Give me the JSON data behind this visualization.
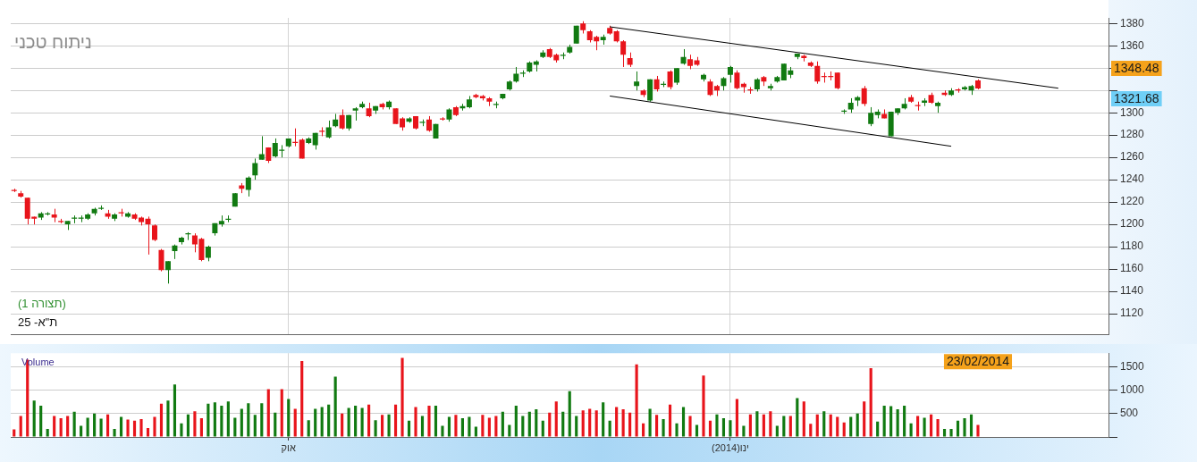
{
  "chart_data": [
    {
      "type": "candlestick",
      "title": "ניתוח טכני",
      "categories": [
        null,
        null,
        null,
        null,
        null,
        null,
        null,
        null,
        null,
        null,
        null,
        null,
        null,
        null,
        null,
        null,
        null,
        null,
        null,
        null,
        null,
        null,
        null,
        null,
        null,
        null,
        null,
        null,
        null,
        null,
        null,
        null,
        null,
        null,
        null,
        null,
        null,
        null,
        null,
        null,
        null,
        null,
        null,
        null,
        null,
        null,
        null,
        null,
        null,
        null,
        null,
        null,
        null,
        null,
        null,
        null,
        null,
        null,
        null,
        null,
        null,
        null,
        null,
        null,
        null,
        null,
        null,
        null,
        null,
        null,
        null,
        null,
        null,
        null,
        null,
        null,
        null,
        null,
        null,
        null,
        null,
        null,
        null,
        null,
        null,
        null,
        null,
        null,
        null,
        null,
        null,
        null,
        null,
        null,
        null,
        null,
        null,
        null,
        null,
        null,
        null,
        null,
        null,
        null,
        null,
        null,
        null,
        null,
        null,
        null,
        null,
        null,
        null,
        null,
        null,
        null,
        null,
        null,
        null,
        null,
        null,
        null,
        null,
        null,
        null,
        null,
        null,
        null,
        null,
        null,
        null,
        null,
        null,
        null,
        null,
        null,
        null,
        null,
        null,
        null,
        null,
        null,
        null,
        null,
        null,
        null,
        null,
        null,
        null,
        null,
        null,
        null,
        null,
        null,
        null,
        null,
        null,
        null,
        null,
        null,
        null,
        null,
        null,
        null
      ],
      "ohlc": [
        [
          1231,
          1232,
          1229,
          1230
        ],
        [
          1228,
          1230,
          1224,
          1225
        ],
        [
          1224,
          1224,
          1200,
          1205
        ],
        [
          1207,
          1207,
          1200,
          1205
        ],
        [
          1206,
          1211,
          1204,
          1210
        ],
        [
          1209,
          1211,
          1208,
          1210
        ],
        [
          1209,
          1214,
          1202,
          1206
        ],
        [
          1203,
          1205,
          1201,
          1202
        ],
        [
          1200,
          1203,
          1195,
          1203
        ],
        [
          1205,
          1208,
          1201,
          1206
        ],
        [
          1205,
          1208,
          1202,
          1206
        ],
        [
          1205,
          1210,
          1204,
          1209
        ],
        [
          1210,
          1215,
          1208,
          1214
        ],
        [
          1214,
          1217,
          1213,
          1215
        ],
        [
          1210,
          1213,
          1205,
          1207
        ],
        [
          1205,
          1210,
          1203,
          1209
        ],
        [
          1211,
          1214,
          1207,
          1210
        ],
        [
          1207,
          1211,
          1206,
          1210
        ],
        [
          1209,
          1210,
          1204,
          1205
        ],
        [
          1206,
          1207,
          1199,
          1202
        ],
        [
          1205,
          1207,
          1173,
          1200
        ],
        [
          1199,
          1200,
          1185,
          1186
        ],
        [
          1177,
          1178,
          1158,
          1159
        ],
        [
          1159,
          1167,
          1147,
          1167
        ],
        [
          1176,
          1182,
          1169,
          1181
        ],
        [
          1184,
          1189,
          1182,
          1188
        ],
        [
          1191,
          1193,
          1186,
          1192
        ],
        [
          1190,
          1192,
          1175,
          1182
        ],
        [
          1187,
          1188,
          1167,
          1168
        ],
        [
          1170,
          1181,
          1167,
          1180
        ],
        [
          1192,
          1201,
          1190,
          1201
        ],
        [
          1200,
          1208,
          1198,
          1203
        ],
        [
          1204,
          1208,
          1202,
          1205
        ],
        [
          1216,
          1228,
          1216,
          1228
        ],
        [
          1235,
          1237,
          1228,
          1232
        ],
        [
          1231,
          1243,
          1225,
          1242
        ],
        [
          1244,
          1259,
          1240,
          1255
        ],
        [
          1258,
          1279,
          1258,
          1263
        ],
        [
          1269,
          1269,
          1255,
          1257
        ],
        [
          1261,
          1277,
          1260,
          1273
        ],
        [
          1266,
          1271,
          1260,
          1267
        ],
        [
          1270,
          1277,
          1269,
          1277
        ],
        [
          1274,
          1286,
          1270,
          1273
        ],
        [
          1276,
          1277,
          1259,
          1259
        ],
        [
          1273,
          1278,
          1272,
          1277
        ],
        [
          1271,
          1282,
          1267,
          1282
        ],
        [
          1284,
          1287,
          1279,
          1283
        ],
        [
          1278,
          1293,
          1277,
          1287
        ],
        [
          1288,
          1299,
          1287,
          1294
        ],
        [
          1298,
          1303,
          1285,
          1286
        ],
        [
          1286,
          1298,
          1284,
          1298
        ],
        [
          1302,
          1305,
          1293,
          1304
        ],
        [
          1305,
          1310,
          1304,
          1308
        ],
        [
          1304,
          1309,
          1296,
          1297
        ],
        [
          1302,
          1306,
          1299,
          1306
        ],
        [
          1308,
          1309,
          1303,
          1305
        ],
        [
          1305,
          1311,
          1303,
          1310
        ],
        [
          1304,
          1304,
          1290,
          1290
        ],
        [
          1295,
          1296,
          1284,
          1287
        ],
        [
          1292,
          1296,
          1291,
          1295
        ],
        [
          1297,
          1297,
          1285,
          1286
        ],
        [
          1291,
          1294,
          1288,
          1292
        ],
        [
          1294,
          1297,
          1283,
          1284
        ],
        [
          1277,
          1290,
          1277,
          1290
        ],
        [
          1295,
          1296,
          1293,
          1294
        ],
        [
          1294,
          1304,
          1292,
          1303
        ],
        [
          1305,
          1306,
          1297,
          1298
        ],
        [
          1304,
          1308,
          1302,
          1306
        ],
        [
          1305,
          1315,
          1304,
          1312
        ],
        [
          1316,
          1317,
          1313,
          1314
        ],
        [
          1315,
          1316,
          1311,
          1313
        ],
        [
          1313,
          1314,
          1306,
          1310
        ],
        [
          1307,
          1310,
          1304,
          1308
        ],
        [
          1313,
          1317,
          1312,
          1317
        ],
        [
          1321,
          1329,
          1320,
          1328
        ],
        [
          1328,
          1341,
          1327,
          1335
        ],
        [
          1335,
          1338,
          1332,
          1336
        ],
        [
          1337,
          1346,
          1336,
          1345
        ],
        [
          1343,
          1347,
          1337,
          1346
        ],
        [
          1350,
          1356,
          1349,
          1354
        ],
        [
          1357,
          1358,
          1349,
          1350
        ],
        [
          1352,
          1353,
          1345,
          1347
        ],
        [
          1351,
          1354,
          1348,
          1352
        ],
        [
          1354,
          1361,
          1353,
          1359
        ],
        [
          1362,
          1378,
          1362,
          1378
        ],
        [
          1380,
          1382,
          1371,
          1374
        ],
        [
          1373,
          1374,
          1363,
          1365
        ],
        [
          1368,
          1369,
          1356,
          1364
        ],
        [
          1365,
          1370,
          1361,
          1368
        ],
        [
          1376,
          1378,
          1370,
          1371
        ],
        [
          1373,
          1374,
          1363,
          1364
        ],
        [
          1364,
          1365,
          1341,
          1352
        ],
        [
          1349,
          1354,
          1341,
          1343
        ],
        [
          1324,
          1337,
          1320,
          1328
        ],
        [
          1320,
          1321,
          1314,
          1316
        ],
        [
          1311,
          1330,
          1310,
          1330
        ],
        [
          1330,
          1333,
          1319,
          1321
        ],
        [
          1325,
          1328,
          1323,
          1326
        ],
        [
          1337,
          1338,
          1321,
          1323
        ],
        [
          1327,
          1340,
          1325,
          1340
        ],
        [
          1344,
          1357,
          1343,
          1350
        ],
        [
          1348,
          1352,
          1339,
          1342
        ],
        [
          1347,
          1350,
          1342,
          1343
        ],
        [
          1330,
          1335,
          1328,
          1334
        ],
        [
          1328,
          1330,
          1315,
          1316
        ],
        [
          1324,
          1325,
          1315,
          1320
        ],
        [
          1324,
          1332,
          1320,
          1331
        ],
        [
          1334,
          1342,
          1327,
          1341
        ],
        [
          1336,
          1338,
          1321,
          1322
        ],
        [
          1326,
          1327,
          1318,
          1323
        ],
        [
          1321,
          1323,
          1317,
          1320
        ],
        [
          1321,
          1331,
          1319,
          1330
        ],
        [
          1332,
          1333,
          1324,
          1328
        ],
        [
          1322,
          1326,
          1320,
          1324
        ],
        [
          1328,
          1333,
          1327,
          1332
        ],
        [
          1329,
          1344,
          1329,
          1344
        ],
        [
          1334,
          1341,
          1331,
          1338
        ],
        [
          1350,
          1353,
          1348,
          1353
        ],
        [
          1351,
          1352,
          1346,
          1349
        ],
        [
          1345,
          1346,
          1341,
          1342
        ],
        [
          1342,
          1346,
          1326,
          1328
        ],
        [
          1333,
          1336,
          1327,
          1332
        ],
        [
          1333,
          1337,
          1329,
          1332
        ],
        [
          1336,
          1336,
          1321,
          1322
        ],
        [
          1301,
          1303,
          1299,
          1302
        ],
        [
          1303,
          1313,
          1300,
          1309
        ],
        [
          1311,
          1315,
          1306,
          1314
        ],
        [
          1322,
          1324,
          1306,
          1308
        ],
        [
          1290,
          1305,
          1288,
          1300
        ],
        [
          1298,
          1303,
          1295,
          1301
        ],
        [
          1299,
          1303,
          1295,
          1295
        ],
        [
          1279,
          1301,
          1279,
          1301
        ],
        [
          1300,
          1304,
          1298,
          1304
        ],
        [
          1304,
          1313,
          1303,
          1308
        ],
        [
          1314,
          1316,
          1309,
          1310
        ],
        [
          1307,
          1310,
          1302,
          1306
        ],
        [
          1309,
          1313,
          1306,
          1311
        ],
        [
          1316,
          1318,
          1308,
          1309
        ],
        [
          1306,
          1310,
          1300,
          1309
        ],
        [
          1318,
          1320,
          1315,
          1316
        ],
        [
          1316,
          1322,
          1315,
          1320
        ],
        [
          1321,
          1322,
          1318,
          1320
        ],
        [
          1321,
          1324,
          1320,
          1323
        ],
        [
          1320,
          1325,
          1316,
          1324
        ],
        [
          1329,
          1330,
          1321,
          1321.68
        ],
        null,
        null,
        null,
        null,
        null,
        null,
        null,
        null,
        null,
        null,
        null,
        null,
        null,
        null,
        null,
        null,
        null,
        null,
        null
      ],
      "colors": [
        "#e8141b",
        "#e8141b",
        "#e8141b",
        "#e8141b",
        "#117a11",
        "#117a11",
        "#e8141b",
        "#e8141b",
        "#117a11",
        "#117a11",
        "#117a11",
        "#117a11",
        "#117a11",
        "#117a11",
        "#e8141b",
        "#117a11",
        "#e8141b",
        "#117a11",
        "#e8141b",
        "#e8141b",
        "#e8141b",
        "#e8141b",
        "#e8141b",
        "#117a11",
        "#117a11",
        "#117a11",
        "#117a11",
        "#e8141b",
        "#e8141b",
        "#117a11",
        "#117a11",
        "#117a11",
        "#117a11",
        "#117a11",
        "#e8141b",
        "#117a11",
        "#117a11",
        "#117a11",
        "#e8141b",
        "#117a11",
        "#117a11",
        "#117a11",
        "#e8141b",
        "#e8141b",
        "#117a11",
        "#117a11",
        "#e8141b",
        "#117a11",
        "#117a11",
        "#e8141b",
        "#117a11",
        "#117a11",
        "#117a11",
        "#e8141b",
        "#117a11",
        "#e8141b",
        "#117a11",
        "#e8141b",
        "#e8141b",
        "#117a11",
        "#e8141b",
        "#117a11",
        "#e8141b",
        "#117a11",
        "#e8141b",
        "#117a11",
        "#e8141b",
        "#117a11",
        "#117a11",
        "#e8141b",
        "#e8141b",
        "#e8141b",
        "#117a11",
        "#117a11",
        "#117a11",
        "#117a11",
        "#117a11",
        "#117a11",
        "#117a11",
        "#117a11",
        "#e8141b",
        "#e8141b",
        "#117a11",
        "#117a11",
        "#117a11",
        "#e8141b",
        "#e8141b",
        "#e8141b",
        "#117a11",
        "#e8141b",
        "#e8141b",
        "#e8141b",
        "#e8141b",
        "#117a11",
        "#e8141b",
        "#117a11",
        "#e8141b",
        "#117a11",
        "#e8141b",
        "#117a11",
        "#117a11",
        "#e8141b",
        "#e8141b",
        "#117a11",
        "#e8141b",
        "#e8141b",
        "#117a11",
        "#117a11",
        "#e8141b",
        "#e8141b",
        "#e8141b",
        "#117a11",
        "#e8141b",
        "#117a11",
        "#117a11",
        "#117a11",
        "#117a11",
        "#117a11",
        "#e8141b",
        "#e8141b",
        "#e8141b",
        "#e8141b",
        "#e8141b",
        "#e8141b",
        "#117a11",
        "#117a11",
        "#117a11",
        "#e8141b",
        "#117a11",
        "#117a11",
        "#e8141b",
        "#117a11",
        "#117a11",
        "#117a11",
        "#e8141b",
        "#e8141b",
        "#117a11",
        "#e8141b",
        "#117a11",
        "#e8141b",
        "#117a11",
        "#e8141b",
        "#117a11",
        "#117a11",
        "#e8141b",
        null,
        null,
        null,
        null,
        null,
        null,
        null,
        null,
        null,
        null,
        null,
        null,
        null,
        null,
        null,
        null,
        null,
        null,
        null
      ],
      "series": [
        {
          "type": "line",
          "color": "#000000",
          "values": [
            null,
            null,
            null,
            null,
            null,
            null,
            null,
            null,
            null,
            null,
            null,
            null,
            null,
            null,
            null,
            null,
            null,
            null,
            null,
            null,
            null,
            null,
            null,
            null,
            null,
            null,
            null,
            null,
            null,
            null,
            null,
            null,
            null,
            null,
            null,
            null,
            null,
            null,
            null,
            null,
            null,
            null,
            null,
            null,
            null,
            null,
            null,
            null,
            null,
            null,
            null,
            null,
            null,
            null,
            null,
            null,
            null,
            null,
            null,
            null,
            null,
            null,
            null,
            null,
            null,
            null,
            null,
            null,
            null,
            null,
            null,
            null,
            null,
            null,
            null,
            null,
            null,
            null,
            null,
            null,
            null,
            null,
            null,
            null,
            null,
            null,
            null,
            null,
            null,
            1377,
            null,
            null,
            null,
            null,
            null,
            null,
            null,
            null,
            null,
            null,
            null,
            null,
            null,
            null,
            null,
            null,
            null,
            null,
            null,
            null,
            null,
            null,
            null,
            null,
            null,
            null,
            null,
            null,
            null,
            null,
            null,
            null,
            null,
            null,
            null,
            null,
            null,
            null,
            null,
            null,
            null,
            null,
            null,
            null,
            null,
            null,
            null,
            null,
            null,
            null,
            null,
            null,
            null,
            null,
            null,
            null,
            null,
            null,
            null,
            null,
            null,
            null,
            null,
            null,
            null,
            null,
            1322,
            null,
            null,
            null,
            null,
            null,
            null,
            null
          ]
        },
        {
          "type": "line",
          "color": "#000000",
          "values": [
            null,
            null,
            null,
            null,
            null,
            null,
            null,
            null,
            null,
            null,
            null,
            null,
            null,
            null,
            null,
            null,
            null,
            null,
            null,
            null,
            null,
            null,
            null,
            null,
            null,
            null,
            null,
            null,
            null,
            null,
            null,
            null,
            null,
            null,
            null,
            null,
            null,
            null,
            null,
            null,
            null,
            null,
            null,
            null,
            null,
            null,
            null,
            null,
            null,
            null,
            null,
            null,
            null,
            null,
            null,
            null,
            null,
            null,
            null,
            null,
            null,
            null,
            null,
            null,
            null,
            null,
            null,
            null,
            null,
            null,
            null,
            null,
            null,
            null,
            null,
            null,
            null,
            null,
            null,
            null,
            null,
            null,
            null,
            null,
            null,
            null,
            null,
            null,
            null,
            1315,
            null,
            null,
            null,
            null,
            null,
            null,
            null,
            null,
            null,
            null,
            null,
            null,
            null,
            null,
            null,
            null,
            null,
            null,
            null,
            null,
            null,
            null,
            null,
            null,
            null,
            null,
            null,
            null,
            null,
            null,
            null,
            null,
            null,
            null,
            null,
            null,
            null,
            null,
            null,
            null,
            null,
            null,
            null,
            null,
            null,
            null,
            null,
            null,
            null,
            null,
            1270,
            null,
            null,
            null,
            null,
            null,
            null,
            null,
            null,
            null,
            null,
            null,
            null,
            null,
            null,
            null,
            null,
            null,
            null,
            null,
            null,
            null,
            null,
            null
          ]
        }
      ],
      "ylim": [
        1101,
        1385
      ],
      "yticks": [
        1120,
        1140,
        1160,
        1180,
        1200,
        1220,
        1240,
        1260,
        1280,
        1300,
        {
          "value": 1320,
          "label": null
        },
        {
          "value": 1340,
          "label": null
        },
        1360,
        1380
      ],
      "grid": true,
      "tick_labels": "y",
      "legend": false,
      "annotations": [
        "(תצורה 1)",
        "ת\"א- 25",
        "1348.48",
        "1321.68"
      ]
    },
    {
      "type": "bar",
      "ylabel": "Volume",
      "categories": [
        null,
        null,
        null,
        null,
        null,
        null,
        null,
        null,
        null,
        null,
        null,
        null,
        null,
        null,
        null,
        null,
        null,
        null,
        null,
        null,
        null,
        null,
        null,
        null,
        null,
        null,
        null,
        null,
        null,
        null,
        null,
        null,
        null,
        null,
        null,
        null,
        null,
        null,
        null,
        null,
        null,
        "אוק",
        null,
        null,
        null,
        null,
        null,
        null,
        null,
        null,
        null,
        null,
        null,
        null,
        null,
        null,
        null,
        null,
        null,
        null,
        null,
        null,
        null,
        null,
        null,
        null,
        null,
        null,
        null,
        null,
        null,
        null,
        null,
        null,
        null,
        null,
        null,
        null,
        null,
        null,
        null,
        null,
        null,
        null,
        null,
        null,
        null,
        null,
        null,
        null,
        null,
        null,
        null,
        null,
        null,
        null,
        null,
        null,
        null,
        null,
        null,
        null,
        null,
        null,
        null,
        null,
        null,
        "(2014)ינו",
        null,
        null,
        null,
        null,
        null,
        null,
        null,
        null,
        null,
        null,
        null,
        null,
        null,
        null,
        null,
        null,
        null,
        null,
        null,
        null,
        null,
        null,
        null,
        null,
        null,
        null,
        null,
        null,
        null,
        null,
        null,
        null,
        null,
        null,
        null,
        null,
        null,
        null,
        null,
        null,
        null,
        null,
        null,
        null,
        null,
        null,
        null,
        null,
        null,
        null,
        null,
        null,
        null,
        null,
        null,
        null
      ],
      "values": [
        160,
        450,
        1650,
        780,
        670,
        170,
        450,
        400,
        450,
        540,
        240,
        410,
        500,
        390,
        480,
        170,
        430,
        370,
        350,
        380,
        190,
        430,
        710,
        780,
        1120,
        290,
        480,
        550,
        400,
        710,
        740,
        670,
        760,
        410,
        600,
        720,
        470,
        720,
        1020,
        520,
        1020,
        810,
        600,
        1620,
        360,
        600,
        640,
        690,
        1290,
        500,
        620,
        670,
        620,
        690,
        360,
        470,
        480,
        690,
        1690,
        350,
        640,
        450,
        670,
        670,
        240,
        430,
        470,
        400,
        430,
        220,
        470,
        410,
        450,
        540,
        260,
        670,
        450,
        540,
        590,
        350,
        520,
        760,
        540,
        980,
        450,
        570,
        600,
        570,
        740,
        350,
        640,
        590,
        520,
        1550,
        290,
        600,
        470,
        380,
        690,
        290,
        640,
        450,
        260,
        1310,
        350,
        480,
        400,
        360,
        810,
        240,
        480,
        550,
        480,
        550,
        240,
        450,
        450,
        830,
        760,
        280,
        480,
        550,
        480,
        430,
        310,
        430,
        500,
        760,
        1470,
        330,
        670,
        660,
        590,
        670,
        290,
        450,
        410,
        480,
        380,
        170,
        170,
        350,
        400,
        480,
        260,
        null,
        null,
        null,
        null,
        null,
        null,
        null,
        null,
        null,
        null,
        null,
        null,
        null,
        null,
        null,
        null,
        null,
        null,
        null
      ],
      "colors": [
        "#e8141b",
        "#e8141b",
        "#e8141b",
        "#117a11",
        "#117a11",
        "#117a11",
        "#e8141b",
        "#e8141b",
        "#e8141b",
        "#117a11",
        "#117a11",
        "#117a11",
        "#117a11",
        "#117a11",
        "#e8141b",
        "#117a11",
        "#117a11",
        "#e8141b",
        "#e8141b",
        "#e8141b",
        "#e8141b",
        "#e8141b",
        "#e8141b",
        "#117a11",
        "#117a11",
        "#117a11",
        "#117a11",
        "#e8141b",
        "#e8141b",
        "#117a11",
        "#117a11",
        "#117a11",
        "#117a11",
        "#117a11",
        "#117a11",
        "#117a11",
        "#117a11",
        "#117a11",
        "#e8141b",
        "#117a11",
        "#e8141b",
        "#117a11",
        "#e8141b",
        "#e8141b",
        "#117a11",
        "#117a11",
        "#117a11",
        "#117a11",
        "#117a11",
        "#e8141b",
        "#117a11",
        "#117a11",
        "#117a11",
        "#e8141b",
        "#117a11",
        "#e8141b",
        "#117a11",
        "#e8141b",
        "#e8141b",
        "#117a11",
        "#e8141b",
        "#117a11",
        "#e8141b",
        "#117a11",
        "#117a11",
        "#117a11",
        "#e8141b",
        "#117a11",
        "#117a11",
        "#117a11",
        "#e8141b",
        "#e8141b",
        "#e8141b",
        "#117a11",
        "#117a11",
        "#117a11",
        "#117a11",
        "#117a11",
        "#117a11",
        "#117a11",
        "#e8141b",
        "#e8141b",
        "#117a11",
        "#117a11",
        "#117a11",
        "#e8141b",
        "#e8141b",
        "#e8141b",
        "#117a11",
        "#117a11",
        "#e8141b",
        "#e8141b",
        "#e8141b",
        "#e8141b",
        "#e8141b",
        "#117a11",
        "#e8141b",
        "#117a11",
        "#e8141b",
        "#117a11",
        "#117a11",
        "#e8141b",
        "#117a11",
        "#e8141b",
        "#e8141b",
        "#117a11",
        "#117a11",
        "#117a11",
        "#e8141b",
        "#117a11",
        "#e8141b",
        "#117a11",
        "#e8141b",
        "#e8141b",
        "#117a11",
        "#117a11",
        "#e8141b",
        "#117a11",
        "#e8141b",
        "#e8141b",
        "#e8141b",
        "#117a11",
        "#e8141b",
        "#e8141b",
        "#e8141b",
        "#117a11",
        "#117a11",
        "#e8141b",
        "#e8141b",
        "#117a11",
        "#117a11",
        "#117a11",
        "#117a11",
        "#117a11",
        "#117a11",
        "#e8141b",
        "#117a11",
        "#e8141b",
        "#e8141b",
        "#117a11",
        "#117a11",
        "#117a11",
        "#117a11",
        "#117a11",
        "#e8141b",
        null,
        null,
        null,
        null,
        null,
        null,
        null,
        null,
        null,
        null,
        null,
        null,
        null,
        null,
        null,
        null,
        null,
        null,
        null
      ],
      "ylim": [
        0,
        1790
      ],
      "yticks": [
        {
          "value": 0,
          "label": null
        },
        500,
        1000,
        1500
      ],
      "grid": true,
      "legend": false,
      "annotations": [
        "23/02/2014"
      ]
    }
  ]
}
